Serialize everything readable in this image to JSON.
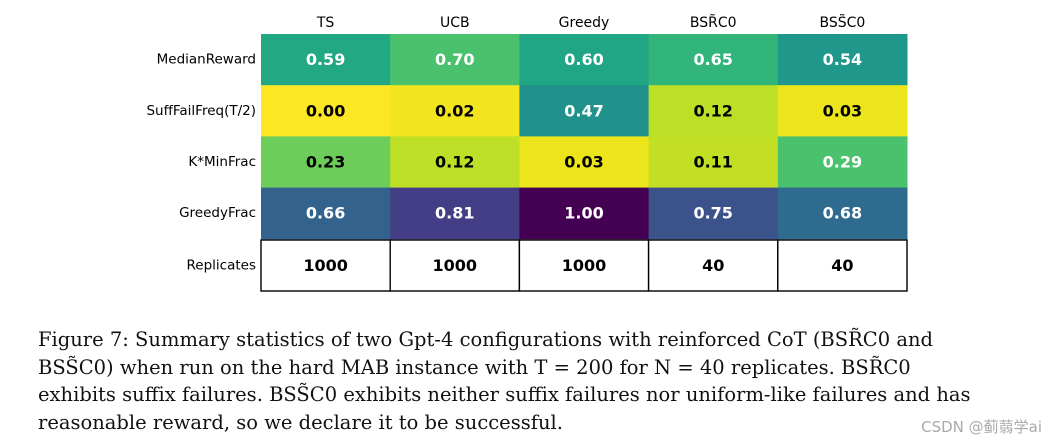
{
  "chart_data": {
    "type": "heatmap",
    "columns": [
      "TS",
      "UCB",
      "Greedy",
      "BSR̃C0",
      "BSS̃C0"
    ],
    "rows": [
      "MedianReward",
      "SuffFailFreq(T/2)",
      "K*MinFrac",
      "GreedyFrac"
    ],
    "values": [
      [
        0.59,
        0.7,
        0.6,
        0.65,
        0.54
      ],
      [
        0.0,
        0.02,
        0.47,
        0.12,
        0.03
      ],
      [
        0.23,
        0.12,
        0.03,
        0.11,
        0.29
      ],
      [
        0.66,
        0.81,
        1.0,
        0.75,
        0.68
      ]
    ],
    "value_labels": [
      [
        "0.59",
        "0.70",
        "0.60",
        "0.65",
        "0.54"
      ],
      [
        "0.00",
        "0.02",
        "0.47",
        "0.12",
        "0.03"
      ],
      [
        "0.23",
        "0.12",
        "0.03",
        "0.11",
        "0.29"
      ],
      [
        "0.66",
        "0.81",
        "1.00",
        "0.75",
        "0.68"
      ]
    ],
    "colormap": "viridis_r",
    "vmin": 0,
    "vmax": 1,
    "cell_colors": [
      [
        "#23a884",
        "#4ac16d",
        "#21a685",
        "#31b57b",
        "#1f988b"
      ],
      [
        "#fde725",
        "#f2e51d",
        "#21918c",
        "#bddf26",
        "#ece51b"
      ],
      [
        "#6ccd5a",
        "#bddf26",
        "#ece51b",
        "#c2df23",
        "#4ac16d"
      ],
      [
        "#33638d",
        "#433e85",
        "#440154",
        "#3b528b",
        "#2f6b8e"
      ]
    ],
    "summary_row": {
      "label": "Replicates",
      "values": [
        1000,
        1000,
        1000,
        40,
        40
      ],
      "value_labels": [
        "1000",
        "1000",
        "1000",
        "40",
        "40"
      ]
    }
  },
  "caption": {
    "lines": [
      "Figure 7:  Summary statistics of two Gpt-4 configurations with reinforced CoT (BSR̃C0 and",
      "BSS̃C0) when run on the hard MAB instance with T = 200 for N = 40 replicates.  BSR̃C0",
      "exhibits suffix failures.  BSS̃C0 exhibits neither suffix failures nor uniform-like failures and has",
      "reasonable reward, so we declare it to be successful."
    ]
  },
  "watermark": "CSDN @蓟蒻学ai"
}
